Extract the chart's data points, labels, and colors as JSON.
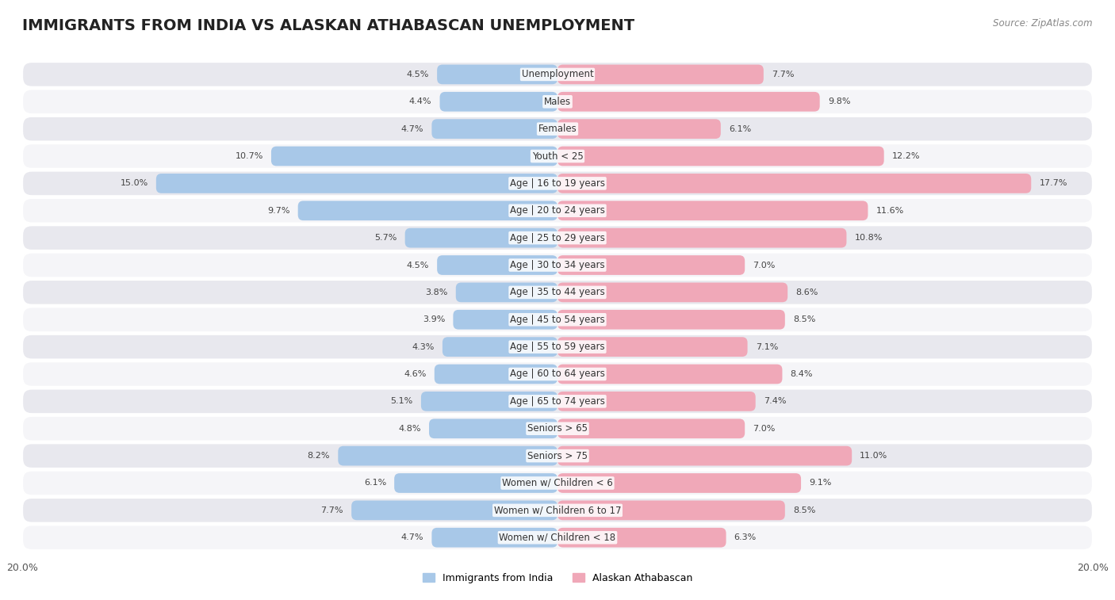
{
  "title": "IMMIGRANTS FROM INDIA VS ALASKAN ATHABASCAN UNEMPLOYMENT",
  "source": "Source: ZipAtlas.com",
  "categories": [
    "Unemployment",
    "Males",
    "Females",
    "Youth < 25",
    "Age | 16 to 19 years",
    "Age | 20 to 24 years",
    "Age | 25 to 29 years",
    "Age | 30 to 34 years",
    "Age | 35 to 44 years",
    "Age | 45 to 54 years",
    "Age | 55 to 59 years",
    "Age | 60 to 64 years",
    "Age | 65 to 74 years",
    "Seniors > 65",
    "Seniors > 75",
    "Women w/ Children < 6",
    "Women w/ Children 6 to 17",
    "Women w/ Children < 18"
  ],
  "india_values": [
    4.5,
    4.4,
    4.7,
    10.7,
    15.0,
    9.7,
    5.7,
    4.5,
    3.8,
    3.9,
    4.3,
    4.6,
    5.1,
    4.8,
    8.2,
    6.1,
    7.7,
    4.7
  ],
  "alaska_values": [
    7.7,
    9.8,
    6.1,
    12.2,
    17.7,
    11.6,
    10.8,
    7.0,
    8.6,
    8.5,
    7.1,
    8.4,
    7.4,
    7.0,
    11.0,
    9.1,
    8.5,
    6.3
  ],
  "india_color": "#a8c8e8",
  "alaska_color": "#f0a8b8",
  "india_label": "Immigrants from India",
  "alaska_label": "Alaskan Athabascan",
  "axis_max": 20.0,
  "bar_height": 0.72,
  "row_bg_odd": "#e8e8ee",
  "row_bg_even": "#f5f5f8",
  "title_fontsize": 14,
  "label_fontsize": 8.5,
  "value_fontsize": 8.0,
  "legend_fontsize": 9,
  "source_fontsize": 8.5
}
